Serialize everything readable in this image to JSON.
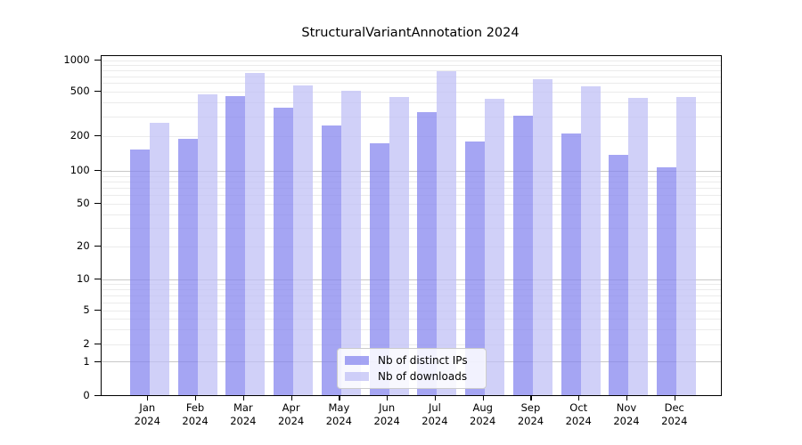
{
  "title": "StructuralVariantAnnotation 2024",
  "chart_data": {
    "type": "bar",
    "title": "StructuralVariantAnnotation 2024",
    "categories": [
      "Jan",
      "Feb",
      "Mar",
      "Apr",
      "May",
      "Jun",
      "Jul",
      "Aug",
      "Sep",
      "Oct",
      "Nov",
      "Dec"
    ],
    "x_year_label": "2024",
    "series": [
      {
        "name": "Nb of distinct IPs",
        "color": "#8282ee",
        "values": [
          153,
          190,
          450,
          360,
          250,
          172,
          325,
          180,
          305,
          210,
          138,
          108
        ]
      },
      {
        "name": "Nb of downloads",
        "color": "#bebef5",
        "values": [
          265,
          475,
          750,
          575,
          505,
          443,
          780,
          430,
          650,
          560,
          437,
          443
        ]
      }
    ],
    "yaxis": {
      "scale": "symlog",
      "ticks": [
        0,
        1,
        2,
        5,
        10,
        20,
        50,
        100,
        200,
        500,
        1000
      ],
      "range": [
        0,
        1000
      ]
    },
    "grid": true,
    "legend_position": "lower center inside plot"
  },
  "colors": {
    "bar_ips": "#8282ee",
    "bar_downloads": "#bebef5",
    "grid_major": "#c8c8c8",
    "grid_minor": "#ebebeb",
    "axis": "#000000",
    "legend_border": "#cccccc"
  }
}
